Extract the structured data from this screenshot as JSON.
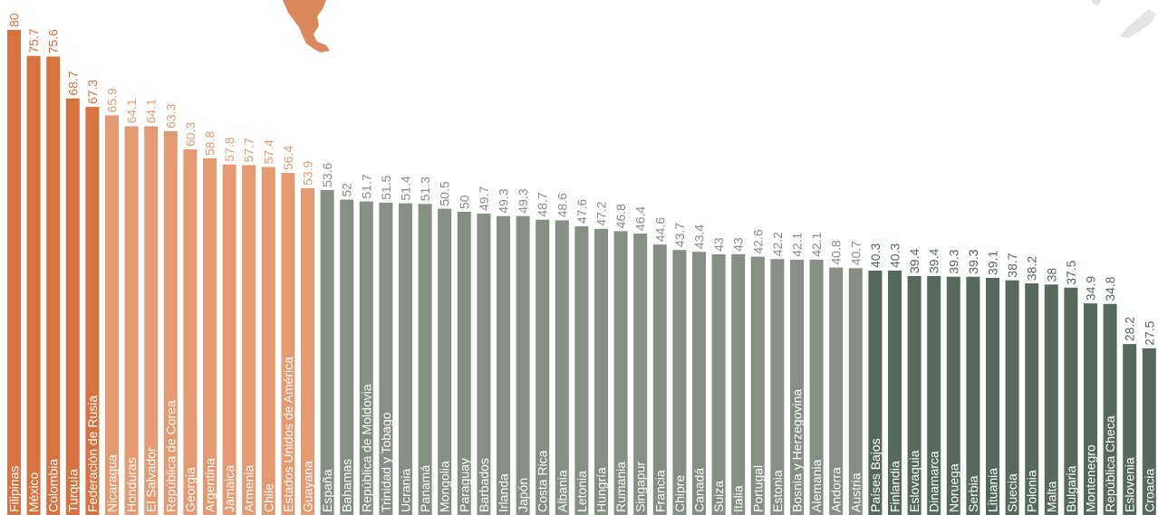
{
  "colors": {
    "background": "#ffffff",
    "group1": "#d67340",
    "group2": "#e49a72",
    "group3": "#858f84",
    "group4": "#56695c",
    "map": "#d9885b",
    "map_grey": "#e4e6e3"
  },
  "chart_data": {
    "type": "bar",
    "orientation": "vertical",
    "ylim": [
      0,
      80
    ],
    "grid": false,
    "legend": "none",
    "categories": [
      "Filipinas",
      "México",
      "Colombia",
      "Turquía",
      "Federación de Rusia",
      "Nicaragua",
      "Honduras",
      "El Salvador",
      "República de Corea",
      "Georgia",
      "Argentina",
      "Jamaica",
      "Armenia",
      "Chile",
      "Estados Unidos de América",
      "Guayana",
      "España",
      "Bahamas",
      "República de Moldovia",
      "Trinidad y Tobago",
      "Ucrania",
      "Panamá",
      "Mongolia",
      "Paraguay",
      "Barbados",
      "Irlanda",
      "Japón",
      "Costa Rica",
      "Albania",
      "Letonia",
      "Hungría",
      "Rumania",
      "Singapur",
      "Francia",
      "Chipre",
      "Canadá",
      "Suiza",
      "Italia",
      "Portugal",
      "Estonia",
      "Bosnia y Herzegovina",
      "Alemania",
      "Andorra",
      "Austria",
      "Países Bajos",
      "Finlandia",
      "Eslovaquia",
      "Dinamarca",
      "Noruega",
      "Serbia",
      "Lituania",
      "Suecia",
      "Polonia",
      "Malta",
      "Bulgaria",
      "Montenegro",
      "República Checa",
      "Eslovenia",
      "Croacia"
    ],
    "values": [
      80,
      75.7,
      75.6,
      68.7,
      67.3,
      65.9,
      64.1,
      64.1,
      63.3,
      60.3,
      58.8,
      57.8,
      57.7,
      57.4,
      56.4,
      53.9,
      53.6,
      52,
      51.7,
      51.5,
      51.4,
      51.3,
      50.5,
      50,
      49.7,
      49.3,
      49.3,
      48.7,
      48.6,
      47.6,
      47.2,
      46.8,
      46.4,
      44.6,
      43.7,
      43.4,
      43,
      43,
      42.6,
      42.2,
      42.1,
      42.1,
      40.8,
      40.7,
      40.3,
      40.3,
      39.4,
      39.4,
      39.3,
      39.3,
      39.1,
      38.7,
      38.2,
      38,
      37.5,
      34.9,
      34.8,
      28.2,
      27.5
    ],
    "value_labels": [
      "80",
      "75.7",
      "75.6",
      "68.7",
      "67.3",
      "65.9",
      "64.1",
      "64.1",
      "63.3",
      "60.3",
      "58.8",
      "57.8",
      "57.7",
      "57.4",
      "56.4",
      "53.9",
      "53.6",
      "52",
      "51.7",
      "51.5",
      "51.4",
      "51.3",
      "50.5",
      "50",
      "49.7",
      "49.3",
      "49.3",
      "48.7",
      "48.6",
      "47.6",
      "47.2",
      "46.8",
      "46.4",
      "44.6",
      "43.7",
      "43.4",
      "43",
      "43",
      "42.6",
      "42.2",
      "42.1",
      "42.1",
      "40.8",
      "40.7",
      "40.3",
      "40.3",
      "39.4",
      "39.4",
      "39.3",
      "39.3",
      "39.1",
      "38.7",
      "38.2",
      "38",
      "37.5",
      "34.9",
      "34.8",
      "28.2",
      "27.5"
    ],
    "groups": [
      1,
      1,
      1,
      1,
      1,
      2,
      2,
      2,
      2,
      2,
      2,
      2,
      2,
      2,
      2,
      2,
      3,
      3,
      3,
      3,
      3,
      3,
      3,
      3,
      3,
      3,
      3,
      3,
      3,
      3,
      3,
      3,
      3,
      3,
      3,
      3,
      3,
      3,
      3,
      3,
      3,
      3,
      3,
      3,
      4,
      4,
      4,
      4,
      4,
      4,
      4,
      4,
      4,
      4,
      4,
      4,
      4,
      4,
      4
    ]
  }
}
